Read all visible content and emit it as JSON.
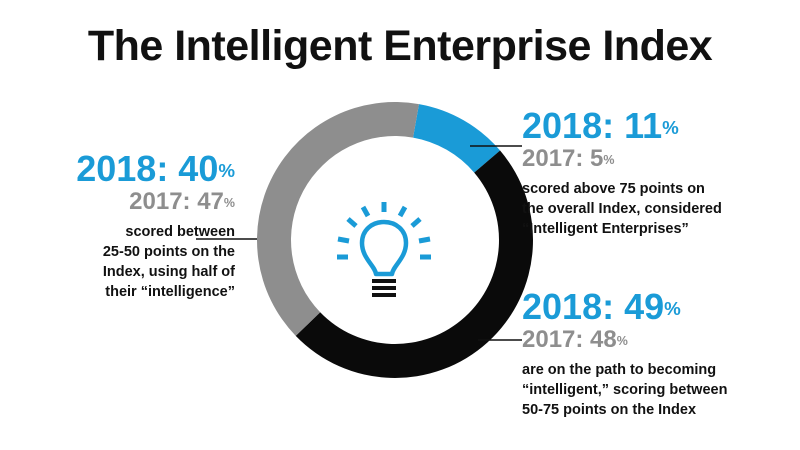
{
  "title": "The Intelligent Enterprise Index",
  "chart_data": {
    "type": "pie",
    "style": "donut",
    "categories": [
      "scored above 75 points",
      "scored 50-75 points",
      "scored 25-50 points"
    ],
    "values": [
      11,
      49,
      40
    ],
    "colors": [
      "#1a9bd7",
      "#0a0a0a",
      "#8e8e8e"
    ],
    "center_icon": "lightbulb-icon"
  },
  "annotations": {
    "top_right": {
      "year2018": "2018: 11",
      "year2017": "2017: 5",
      "unit": "%",
      "desc": [
        "scored above 75 points on",
        "the overall Index, considered",
        "“Intelligent Enterprises”"
      ]
    },
    "bottom_right": {
      "year2018": "2018: 49",
      "year2017": "2017: 48",
      "unit": "%",
      "desc": [
        "are on the path to becoming",
        "“intelligent,” scoring between",
        "50-75 points on the Index"
      ]
    },
    "left": {
      "year2018": "2018: 40",
      "year2017": "2017: 47",
      "unit": "%",
      "desc": [
        "scored between",
        "25-50 points on the",
        "Index, using half of",
        "their “intelligence”"
      ]
    }
  }
}
